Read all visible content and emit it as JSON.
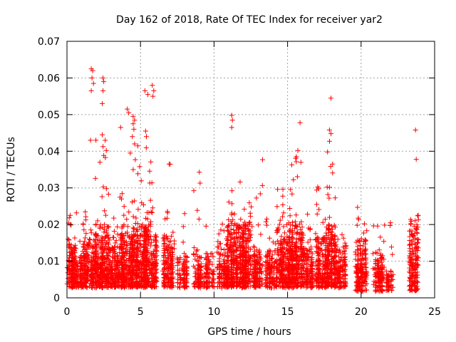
{
  "chart_data": {
    "type": "scatter",
    "title": "Day 162 of 2018, Rate Of TEC Index for receiver yar2",
    "xlabel": "GPS time / hours",
    "ylabel": "ROTI / TECUs",
    "xlim": [
      0,
      25
    ],
    "ylim": [
      0,
      0.07
    ],
    "xticks": [
      "0",
      "5",
      "10",
      "15",
      "20",
      "25"
    ],
    "yticks": [
      "0",
      "0.01",
      "0.02",
      "0.03",
      "0.04",
      "0.05",
      "0.06",
      "0.07"
    ],
    "xtick_values": [
      0,
      5,
      10,
      15,
      20,
      25
    ],
    "ytick_values": [
      0,
      0.01,
      0.02,
      0.03,
      0.04,
      0.05,
      0.06,
      0.07
    ],
    "grid": true,
    "marker": "+",
    "color": "#ff0000",
    "clusters": [
      {
        "x": [
          0.0,
          0.6
        ],
        "base": [
          0.003,
          0.016
        ],
        "max": 0.027,
        "n": 70
      },
      {
        "x": [
          0.6,
          1.1
        ],
        "base": [
          0.003,
          0.012
        ],
        "max": 0.026,
        "n": 40
      },
      {
        "x": [
          1.1,
          1.9
        ],
        "base": [
          0.003,
          0.016
        ],
        "max": 0.027,
        "n": 90
      },
      {
        "x": [
          1.9,
          2.9
        ],
        "base": [
          0.003,
          0.02
        ],
        "max": 0.044,
        "n": 160
      },
      {
        "x": [
          2.9,
          3.6
        ],
        "base": [
          0.003,
          0.014
        ],
        "max": 0.027,
        "n": 80
      },
      {
        "x": [
          3.6,
          4.4
        ],
        "base": [
          0.003,
          0.018
        ],
        "max": 0.034,
        "n": 110
      },
      {
        "x": [
          4.4,
          5.0
        ],
        "base": [
          0.003,
          0.02
        ],
        "max": 0.049,
        "n": 110
      },
      {
        "x": [
          5.0,
          5.7
        ],
        "base": [
          0.003,
          0.02
        ],
        "max": 0.045,
        "n": 130
      },
      {
        "x": [
          5.7,
          6.1
        ],
        "base": [
          0.003,
          0.017
        ],
        "max": 0.038,
        "n": 50
      },
      {
        "x": [
          6.5,
          7.3
        ],
        "base": [
          0.003,
          0.017
        ],
        "max": 0.037,
        "n": 60
      },
      {
        "x": [
          7.5,
          8.2
        ],
        "base": [
          0.003,
          0.012
        ],
        "max": 0.025,
        "n": 35
      },
      {
        "x": [
          8.6,
          9.2
        ],
        "base": [
          0.003,
          0.014
        ],
        "max": 0.034,
        "n": 35
      },
      {
        "x": [
          9.3,
          10.0
        ],
        "base": [
          0.003,
          0.012
        ],
        "max": 0.02,
        "n": 30
      },
      {
        "x": [
          10.2,
          10.9
        ],
        "base": [
          0.003,
          0.015
        ],
        "max": 0.022,
        "n": 60
      },
      {
        "x": [
          10.9,
          11.7
        ],
        "base": [
          0.003,
          0.02
        ],
        "max": 0.03,
        "n": 110
      },
      {
        "x": [
          11.7,
          12.6
        ],
        "base": [
          0.003,
          0.02
        ],
        "max": 0.032,
        "n": 130
      },
      {
        "x": [
          12.6,
          13.3
        ],
        "base": [
          0.003,
          0.014
        ],
        "max": 0.038,
        "n": 60
      },
      {
        "x": [
          13.5,
          14.2
        ],
        "base": [
          0.003,
          0.013
        ],
        "max": 0.026,
        "n": 60
      },
      {
        "x": [
          14.2,
          15.2
        ],
        "base": [
          0.003,
          0.02
        ],
        "max": 0.03,
        "n": 130
      },
      {
        "x": [
          15.2,
          16.0
        ],
        "base": [
          0.003,
          0.02
        ],
        "max": 0.04,
        "n": 120
      },
      {
        "x": [
          16.0,
          16.7
        ],
        "base": [
          0.003,
          0.014
        ],
        "max": 0.025,
        "n": 70
      },
      {
        "x": [
          16.9,
          17.6
        ],
        "base": [
          0.003,
          0.017
        ],
        "max": 0.033,
        "n": 90
      },
      {
        "x": [
          17.6,
          18.3
        ],
        "base": [
          0.003,
          0.02
        ],
        "max": 0.046,
        "n": 110
      },
      {
        "x": [
          18.3,
          19.0
        ],
        "base": [
          0.003,
          0.014
        ],
        "max": 0.025,
        "n": 60
      },
      {
        "x": [
          19.6,
          20.4
        ],
        "base": [
          0.002,
          0.016
        ],
        "max": 0.025,
        "n": 80
      },
      {
        "x": [
          20.8,
          21.6
        ],
        "base": [
          0.002,
          0.013
        ],
        "max": 0.02,
        "n": 55
      },
      {
        "x": [
          21.7,
          22.2
        ],
        "base": [
          0.002,
          0.008
        ],
        "max": 0.02,
        "n": 15
      },
      {
        "x": [
          23.3,
          23.9
        ],
        "base": [
          0.002,
          0.02
        ],
        "max": 0.023,
        "n": 80
      }
    ],
    "outliers": [
      [
        1.65,
        0.0625
      ],
      [
        1.75,
        0.062
      ],
      [
        1.7,
        0.06
      ],
      [
        1.8,
        0.0585
      ],
      [
        1.65,
        0.0565
      ],
      [
        1.6,
        0.043
      ],
      [
        2.45,
        0.06
      ],
      [
        2.5,
        0.059
      ],
      [
        2.45,
        0.0565
      ],
      [
        2.4,
        0.053
      ],
      [
        2.4,
        0.0445
      ],
      [
        2.6,
        0.043
      ],
      [
        3.65,
        0.0465
      ],
      [
        4.1,
        0.0515
      ],
      [
        4.2,
        0.0505
      ],
      [
        4.5,
        0.0495
      ],
      [
        4.6,
        0.0485
      ],
      [
        4.5,
        0.0475
      ],
      [
        4.55,
        0.046
      ],
      [
        4.45,
        0.044
      ],
      [
        4.6,
        0.042
      ],
      [
        4.3,
        0.0395
      ],
      [
        4.5,
        0.035
      ],
      [
        5.3,
        0.0565
      ],
      [
        5.5,
        0.0555
      ],
      [
        5.8,
        0.058
      ],
      [
        5.9,
        0.0565
      ],
      [
        5.85,
        0.055
      ],
      [
        5.35,
        0.0455
      ],
      [
        5.4,
        0.044
      ],
      [
        11.2,
        0.0498
      ],
      [
        11.25,
        0.0485
      ],
      [
        11.2,
        0.0465
      ],
      [
        15.85,
        0.0478
      ],
      [
        17.95,
        0.0545
      ],
      [
        17.85,
        0.0458
      ],
      [
        17.95,
        0.0448
      ],
      [
        23.7,
        0.0458
      ],
      [
        23.75,
        0.0378
      ],
      [
        6.95,
        0.0365
      ],
      [
        9.0,
        0.0343
      ],
      [
        13.3,
        0.0377
      ],
      [
        15.7,
        0.0402
      ],
      [
        15.6,
        0.0385
      ],
      [
        22.0,
        0.0205
      ]
    ]
  }
}
